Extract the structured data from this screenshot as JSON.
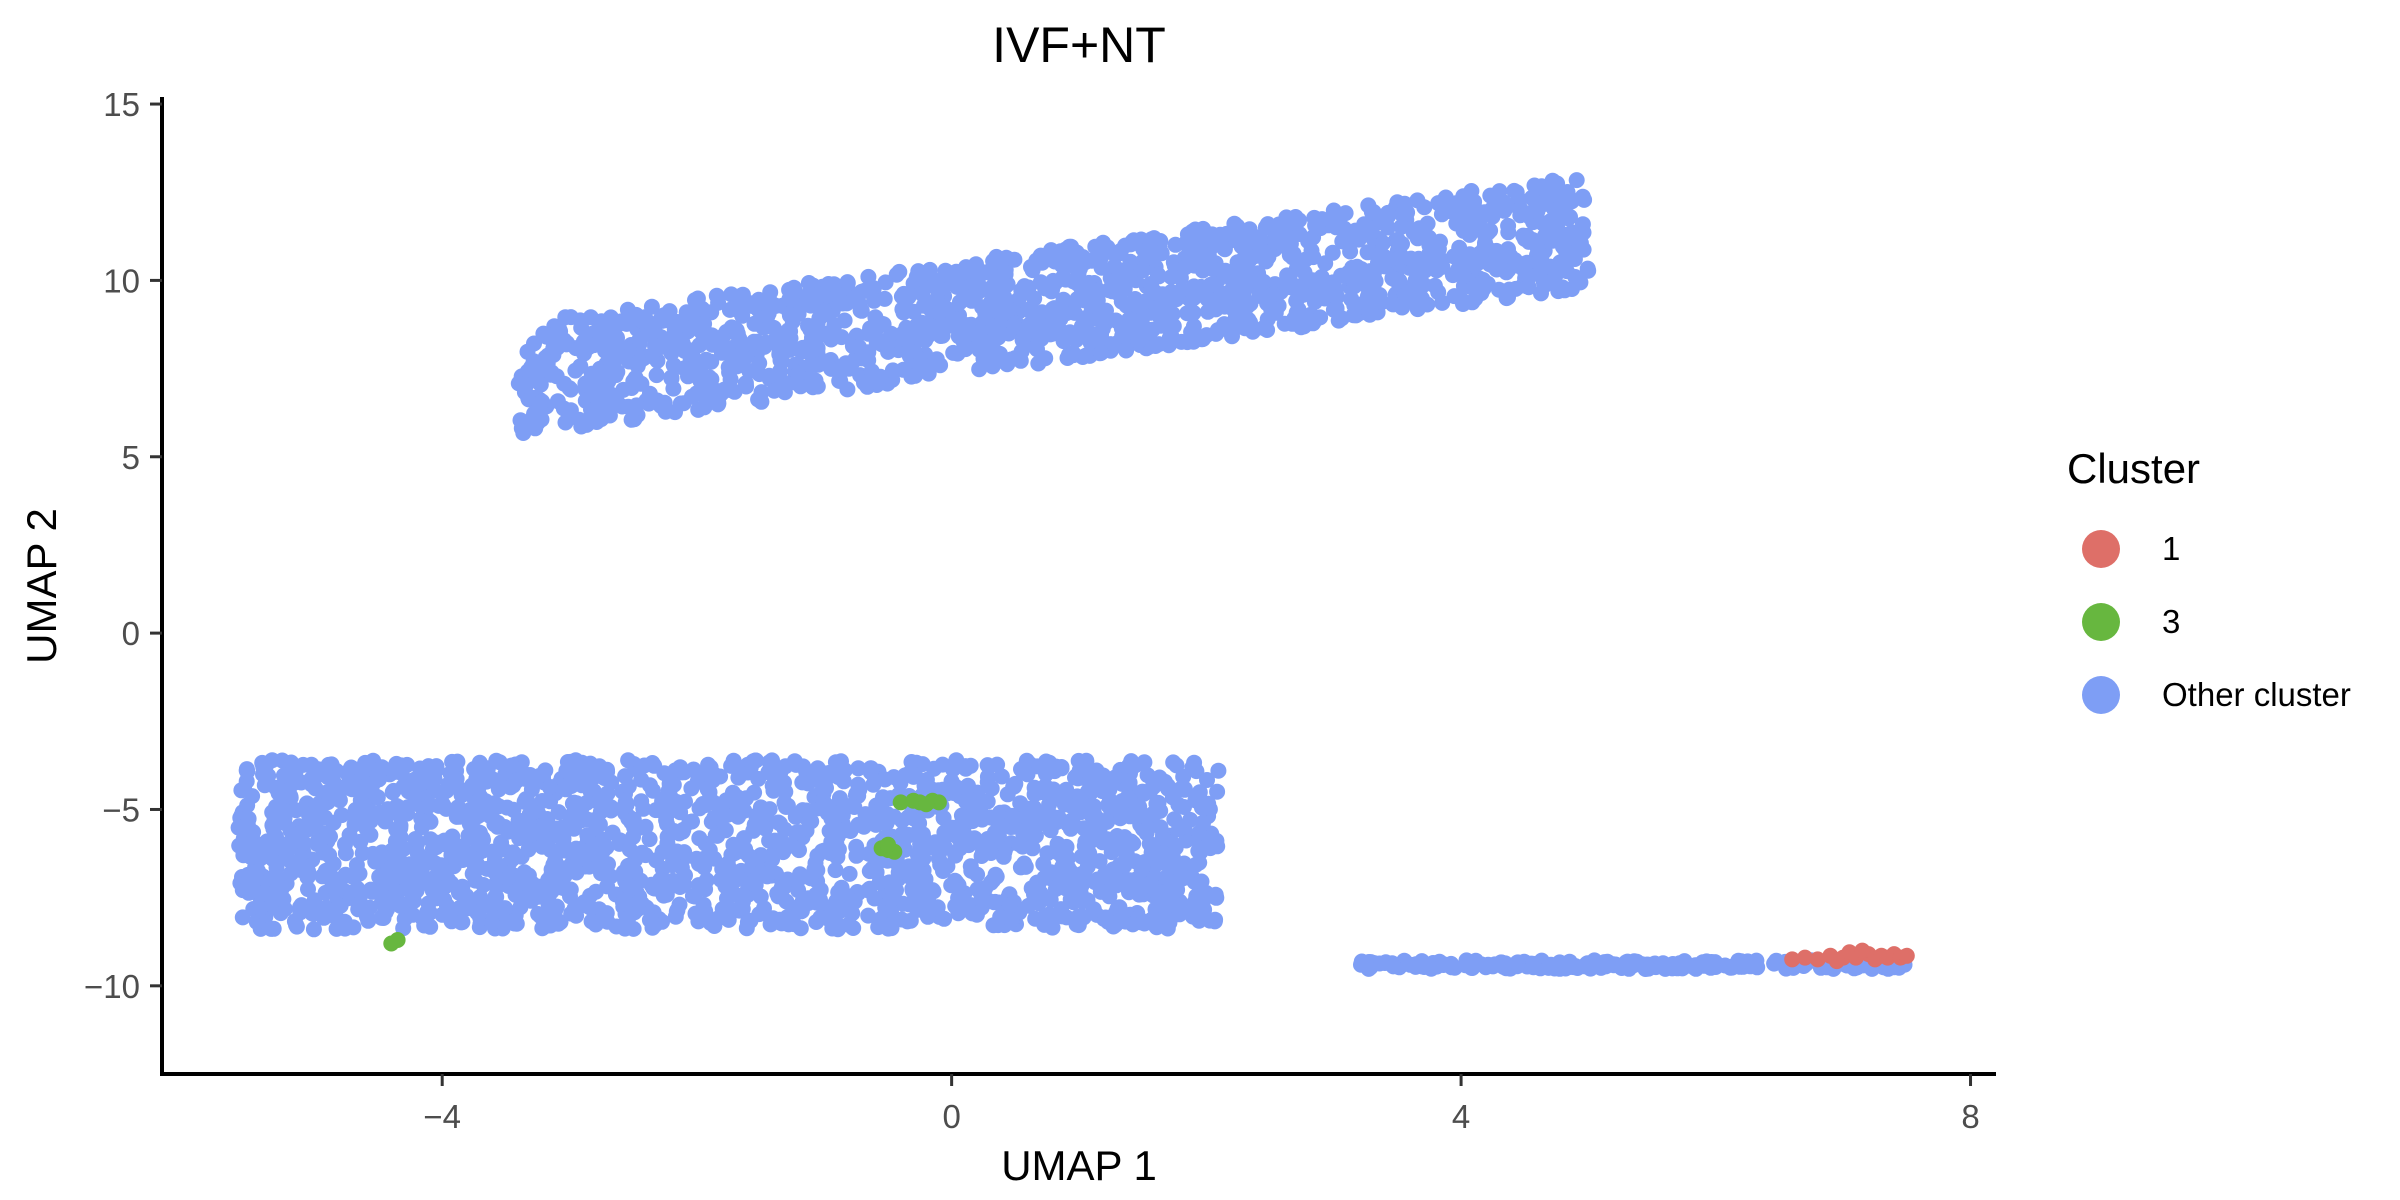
{
  "chart_data": {
    "type": "scatter",
    "title": "IVF+NT",
    "xlabel": "UMAP 1",
    "ylabel": "UMAP 2",
    "xlim": [
      -6.2,
      8.2
    ],
    "ylim": [
      -12.5,
      15.2
    ],
    "x_ticks": [
      -4,
      0,
      4,
      8
    ],
    "y_ticks": [
      -10,
      -5,
      0,
      5,
      10,
      15
    ],
    "x_tick_labels": [
      "−4",
      "0",
      "4",
      "8"
    ],
    "y_tick_labels": [
      "−10",
      "−5",
      "0",
      "5",
      "10",
      "15"
    ],
    "grid": false,
    "legend": {
      "title": "Cluster",
      "position": "right",
      "entries": [
        {
          "label": "1",
          "color": "#DE6F68"
        },
        {
          "label": "3",
          "color": "#67B73F"
        },
        {
          "label": "Other cluster",
          "color": "#7E9EF5"
        }
      ]
    },
    "regions": [
      {
        "series": "Other cluster",
        "x_range": [
          -3.4,
          5.0
        ],
        "center": 9.3,
        "spread": 3.2,
        "n": 1500,
        "slope": 0.5
      },
      {
        "series": "Other cluster",
        "x_range": [
          -5.6,
          2.1
        ],
        "center": -6.0,
        "spread": 4.8,
        "n": 1900
      },
      {
        "series": "Other cluster",
        "x_range": [
          3.2,
          7.5
        ],
        "center": -9.4,
        "spread": 0.25,
        "n": 220
      }
    ],
    "series": [
      {
        "name": "1",
        "color": "#DE6F68",
        "points": [
          [
            6.6,
            -9.25
          ],
          [
            6.7,
            -9.2
          ],
          [
            6.8,
            -9.25
          ],
          [
            6.9,
            -9.15
          ],
          [
            7.0,
            -9.2
          ],
          [
            7.05,
            -9.05
          ],
          [
            7.1,
            -9.2
          ],
          [
            7.2,
            -9.1
          ],
          [
            7.25,
            -9.25
          ],
          [
            7.3,
            -9.15
          ],
          [
            7.35,
            -9.2
          ],
          [
            7.4,
            -9.1
          ],
          [
            7.45,
            -9.2
          ],
          [
            7.5,
            -9.15
          ],
          [
            6.95,
            -9.3
          ],
          [
            7.15,
            -9.0
          ]
        ]
      },
      {
        "name": "3",
        "color": "#67B73F",
        "points": [
          [
            -0.4,
            -4.8
          ],
          [
            -0.3,
            -4.75
          ],
          [
            -0.25,
            -4.8
          ],
          [
            -0.15,
            -4.75
          ],
          [
            -0.1,
            -4.8
          ],
          [
            -0.2,
            -4.85
          ],
          [
            -0.55,
            -6.1
          ],
          [
            -0.5,
            -6.15
          ],
          [
            -0.45,
            -6.2
          ],
          [
            -0.5,
            -6.0
          ],
          [
            -4.35,
            -8.7
          ],
          [
            -4.4,
            -8.8
          ]
        ]
      }
    ]
  }
}
